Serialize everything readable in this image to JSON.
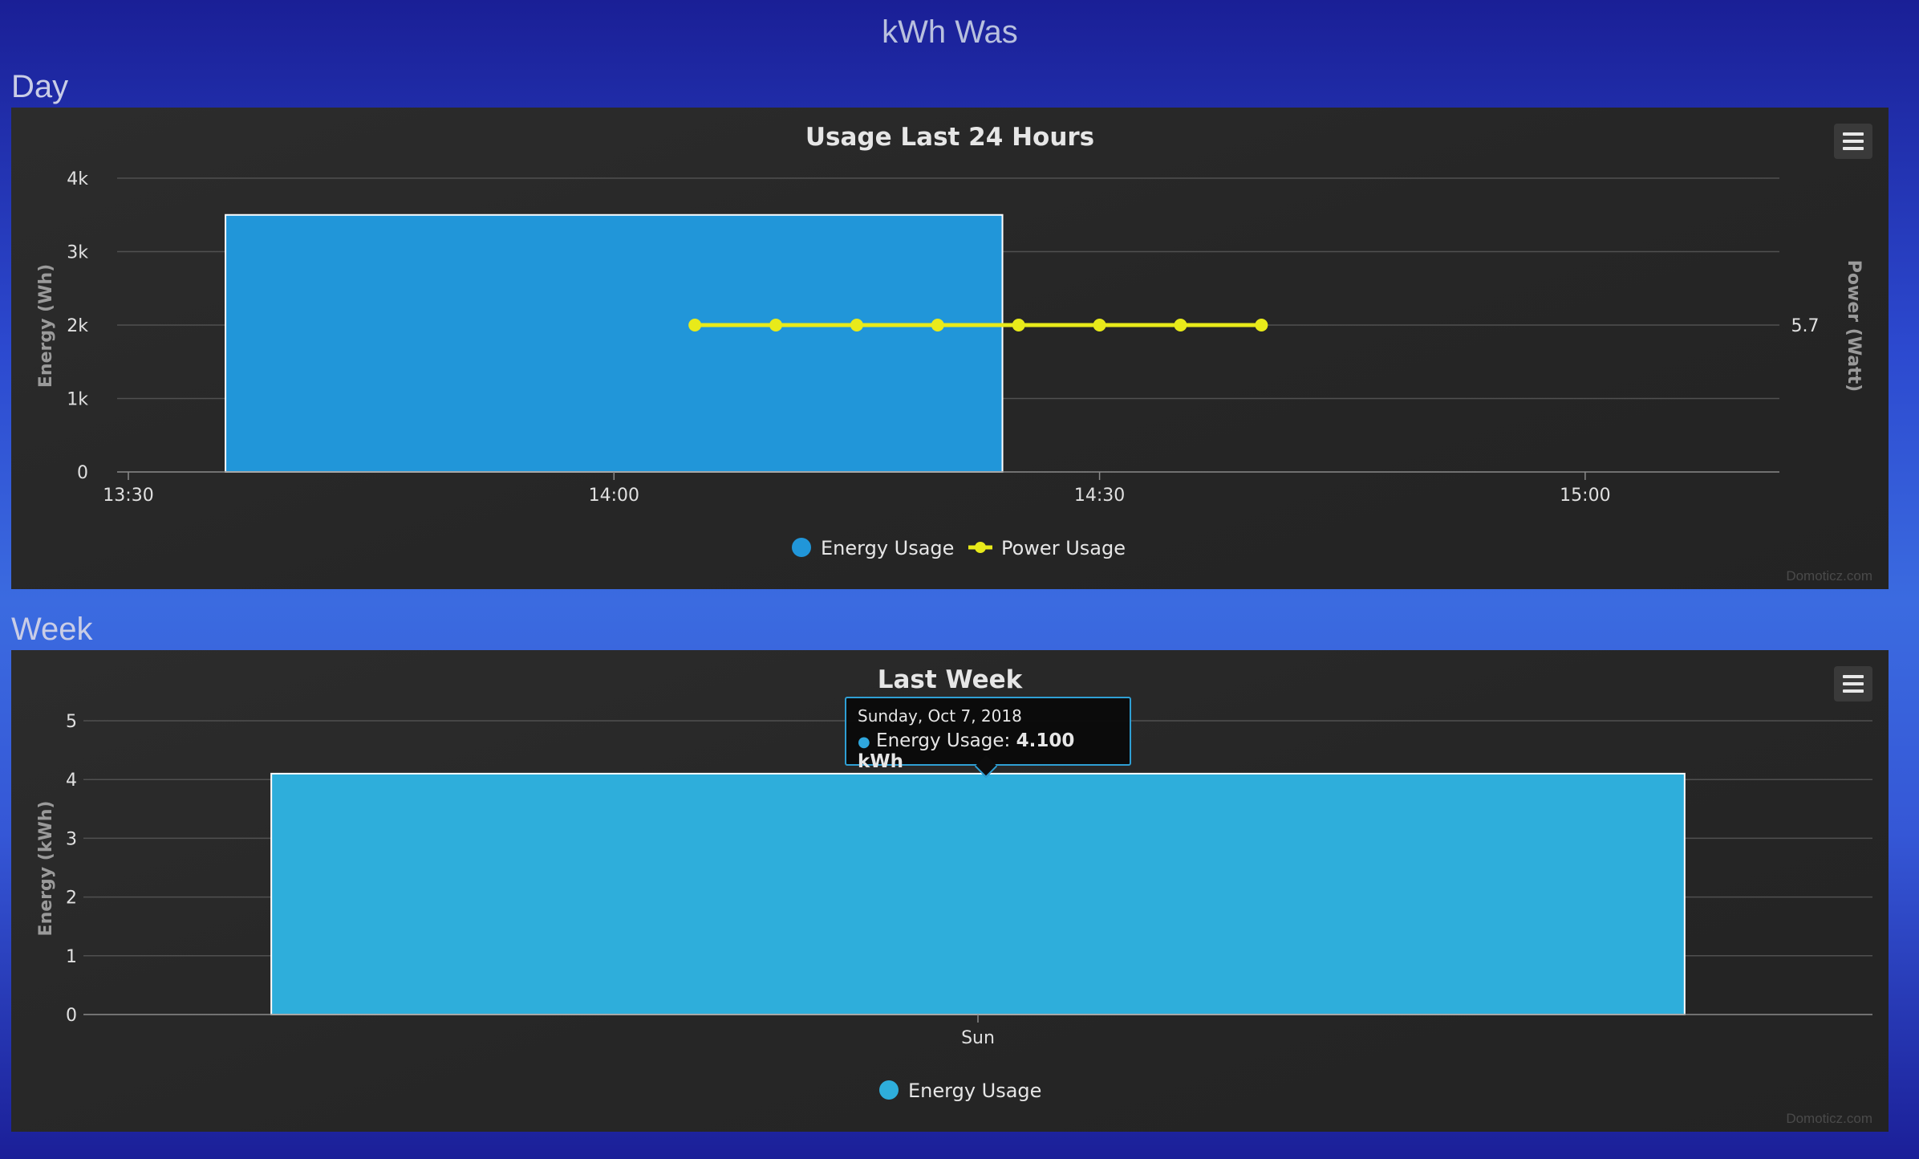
{
  "page": {
    "title": "kWh Was"
  },
  "sections": {
    "day_label": "Day",
    "week_label": "Week"
  },
  "credits": "Domoticz.com",
  "chart_data": [
    {
      "id": "day",
      "type": "bar+line",
      "title": "Usage Last 24 Hours",
      "ylabel": "Energy (Wh)",
      "y2label": "Power (Watt)",
      "ylim": [
        0,
        4000
      ],
      "yticks": [
        {
          "v": 0,
          "label": "0"
        },
        {
          "v": 1000,
          "label": "1k"
        },
        {
          "v": 2000,
          "label": "2k"
        },
        {
          "v": 3000,
          "label": "3k"
        },
        {
          "v": 4000,
          "label": "4k"
        }
      ],
      "y2ticks": [
        {
          "v": 2000,
          "label": "5.7"
        }
      ],
      "xlim": [
        "13:30",
        "15:12"
      ],
      "xticks": [
        "13:30",
        "14:00",
        "14:30",
        "15:00"
      ],
      "legend": [
        "Energy Usage",
        "Power Usage"
      ],
      "legend_position": "bottom-center",
      "series": [
        {
          "name": "Energy Usage",
          "kind": "bar",
          "color": "#2196d9",
          "bars": [
            {
              "x_start": "13:36",
              "x_end": "14:24",
              "value": 3500
            }
          ]
        },
        {
          "name": "Power Usage",
          "kind": "line",
          "color": "#e8ea1a",
          "x": [
            "14:05",
            "14:10",
            "14:15",
            "14:20",
            "14:25",
            "14:30",
            "14:35",
            "14:40"
          ],
          "values": [
            5.7,
            5.7,
            5.7,
            5.7,
            5.7,
            5.7,
            5.7,
            5.7
          ]
        }
      ],
      "grid": true
    },
    {
      "id": "week",
      "type": "bar",
      "title": "Last Week",
      "ylabel": "Energy (kWh)",
      "ylim": [
        0,
        5
      ],
      "yticks": [
        0,
        1,
        2,
        3,
        4,
        5
      ],
      "categories": [
        "Sun"
      ],
      "legend": [
        "Energy Usage"
      ],
      "legend_position": "bottom-center",
      "series": [
        {
          "name": "Energy Usage",
          "color": "#2eaedb",
          "values": [
            4.1
          ]
        }
      ],
      "grid": true,
      "tooltip": {
        "date": "Sunday, Oct 7, 2018",
        "series": "Energy Usage",
        "value": "4.100 kWh"
      }
    }
  ],
  "icons": {
    "chart_menu": "hamburger-menu-icon"
  }
}
